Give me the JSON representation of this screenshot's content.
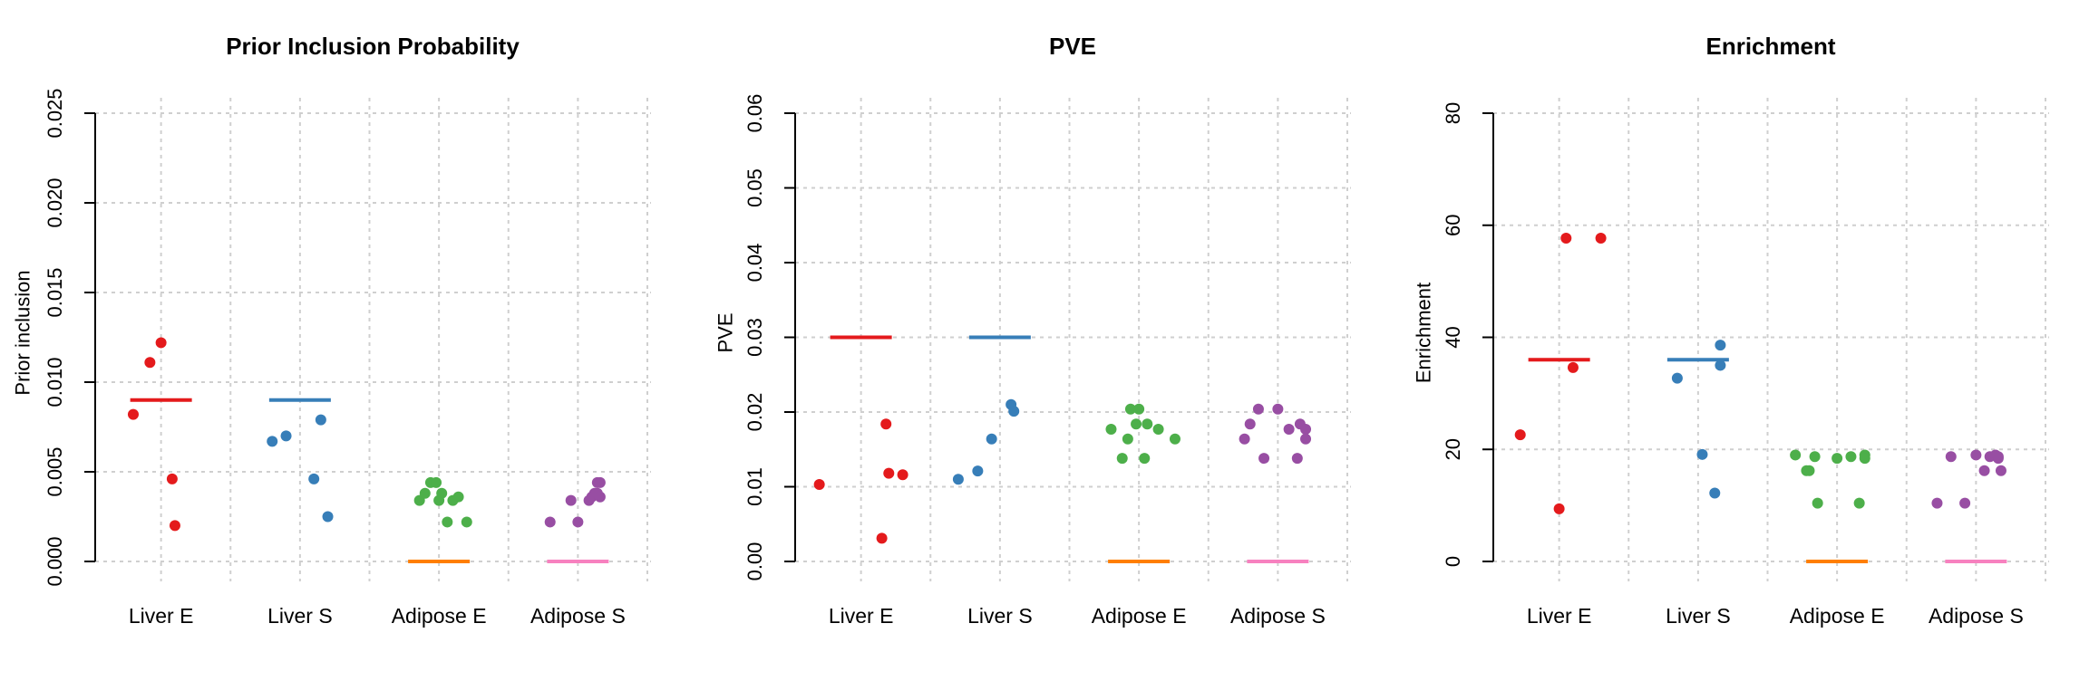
{
  "chart_data": [
    {
      "type": "scatter",
      "title": "Prior Inclusion Probability",
      "ylabel": "Prior inclusion",
      "ylim": [
        0,
        0.025
      ],
      "yticks": [
        "0.000",
        "0.005",
        "0.010",
        "0.015",
        "0.020",
        "0.025"
      ],
      "categories": [
        "Liver E",
        "Liver S",
        "Adipose E",
        "Adipose S"
      ],
      "grid": true,
      "series": [
        {
          "color": "#e41a1c",
          "x": [
            -0.2,
            0.0,
            -0.08,
            0.08,
            0.1
          ],
          "values": [
            0.0082,
            0.0122,
            0.0111,
            0.0046,
            0.002
          ],
          "line": 0.009
        },
        {
          "color": "#377eb8",
          "x": [
            -0.2,
            -0.1,
            0.1,
            0.15,
            0.2
          ],
          "values": [
            0.0067,
            0.007,
            0.0046,
            0.0079,
            0.0025
          ],
          "line": 0.009
        },
        {
          "color": "#4daf4a",
          "x": [
            -0.14,
            -0.1,
            -0.06,
            -0.02,
            0.0,
            0.02,
            0.06,
            0.1,
            0.14,
            0.2
          ],
          "values": [
            0.0034,
            0.0038,
            0.0044,
            0.0044,
            0.0034,
            0.0038,
            0.0022,
            0.0034,
            0.0036,
            0.0022
          ],
          "line": 0.0
        },
        {
          "color": "#984ea3",
          "x": [
            -0.2,
            -0.05,
            0.0,
            0.08,
            0.1,
            0.12,
            0.14,
            0.14,
            0.16,
            0.16
          ],
          "values": [
            0.0022,
            0.0034,
            0.0022,
            0.0034,
            0.0036,
            0.0038,
            0.0038,
            0.0044,
            0.0044,
            0.0036
          ],
          "line": 0.0
        }
      ],
      "line_colors": [
        "#e41a1c",
        "#377eb8",
        "#ff7f00",
        "#f781bf"
      ]
    },
    {
      "type": "scatter",
      "title": "PVE",
      "ylabel": "PVE",
      "ylim": [
        0,
        0.06
      ],
      "yticks": [
        "0.00",
        "0.01",
        "0.02",
        "0.03",
        "0.04",
        "0.05",
        "0.06"
      ],
      "categories": [
        "Liver E",
        "Liver S",
        "Adipose E",
        "Adipose S"
      ],
      "grid": true,
      "series": [
        {
          "color": "#e41a1c",
          "x": [
            -0.3,
            0.15,
            0.18,
            0.2,
            0.3
          ],
          "values": [
            0.0103,
            0.0031,
            0.0184,
            0.0118,
            0.0116
          ],
          "line": 0.03
        },
        {
          "color": "#377eb8",
          "x": [
            -0.3,
            -0.16,
            -0.06,
            0.08,
            0.1
          ],
          "values": [
            0.011,
            0.0121,
            0.0164,
            0.021,
            0.0201
          ],
          "line": 0.03
        },
        {
          "color": "#4daf4a",
          "x": [
            -0.2,
            -0.12,
            -0.08,
            -0.06,
            -0.02,
            0.0,
            0.04,
            0.06,
            0.14,
            0.26
          ],
          "values": [
            0.0177,
            0.0138,
            0.0164,
            0.0204,
            0.0184,
            0.0204,
            0.0138,
            0.0184,
            0.0177,
            0.0164
          ],
          "line": 0.0
        },
        {
          "color": "#984ea3",
          "x": [
            -0.24,
            -0.2,
            -0.14,
            -0.1,
            0.0,
            0.08,
            0.14,
            0.16,
            0.2,
            0.2
          ],
          "values": [
            0.0164,
            0.0184,
            0.0204,
            0.0138,
            0.0204,
            0.0177,
            0.0138,
            0.0184,
            0.0177,
            0.0164
          ],
          "line": 0.0
        }
      ],
      "line_colors": [
        "#e41a1c",
        "#377eb8",
        "#ff7f00",
        "#f781bf"
      ]
    },
    {
      "type": "scatter",
      "title": "Enrichment",
      "ylabel": "Enrichment",
      "ylim": [
        0,
        80
      ],
      "yticks": [
        "0",
        "20",
        "40",
        "60",
        "80"
      ],
      "categories": [
        "Liver E",
        "Liver S",
        "Adipose E",
        "Adipose S"
      ],
      "grid": true,
      "series": [
        {
          "color": "#e41a1c",
          "x": [
            -0.28,
            0.0,
            0.05,
            0.1,
            0.3
          ],
          "values": [
            22.6,
            9.4,
            57.7,
            34.6,
            57.7
          ],
          "line": 36.0
        },
        {
          "color": "#377eb8",
          "x": [
            -0.15,
            0.03,
            0.12,
            0.16,
            0.16
          ],
          "values": [
            32.7,
            19.1,
            12.2,
            38.6,
            35.0
          ],
          "line": 36.0
        },
        {
          "color": "#4daf4a",
          "x": [
            -0.3,
            -0.22,
            -0.2,
            -0.16,
            -0.14,
            0.0,
            0.1,
            0.16,
            0.2,
            0.2
          ],
          "values": [
            19.0,
            16.2,
            16.2,
            18.7,
            10.4,
            18.4,
            18.7,
            10.4,
            19.0,
            18.4
          ],
          "line": 0.0
        },
        {
          "color": "#984ea3",
          "x": [
            -0.28,
            -0.18,
            -0.08,
            0.0,
            0.06,
            0.1,
            0.14,
            0.16,
            0.16,
            0.18
          ],
          "values": [
            10.4,
            18.7,
            10.4,
            19.0,
            16.2,
            18.7,
            19.0,
            18.4,
            18.7,
            16.2
          ],
          "line": 0.0
        }
      ],
      "line_colors": [
        "#e41a1c",
        "#377eb8",
        "#ff7f00",
        "#f781bf"
      ]
    }
  ]
}
